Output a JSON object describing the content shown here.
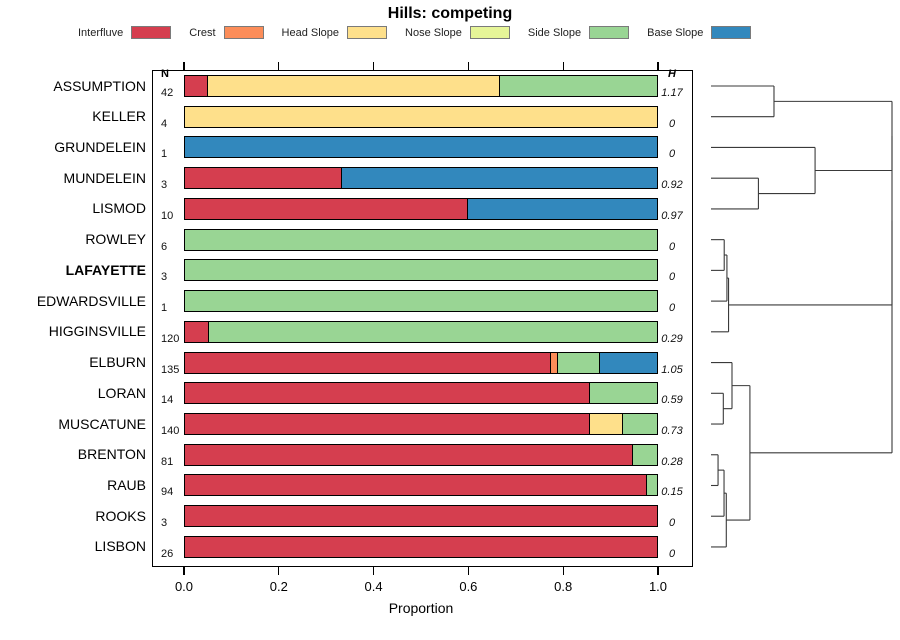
{
  "title": "Hills: competing",
  "columns": {
    "n_header": "N",
    "h_header": "H"
  },
  "axis": {
    "tick_labels": [
      "0.0",
      "0.2",
      "0.4",
      "0.6",
      "0.8",
      "1.0"
    ]
  },
  "chart_data": {
    "type": "bar",
    "orientation": "horizontal-stacked",
    "title": "Hills: competing",
    "xlabel": "Proportion",
    "xlim": [
      0,
      1
    ],
    "xticks": [
      0.0,
      0.2,
      0.4,
      0.6,
      0.8,
      1.0
    ],
    "grid": false,
    "legend_position": "top",
    "classes": [
      {
        "name": "Interfluve",
        "color": "#D53E4F"
      },
      {
        "name": "Crest",
        "color": "#FC8D59"
      },
      {
        "name": "Head Slope",
        "color": "#FEE08B"
      },
      {
        "name": "Nose Slope",
        "color": "#E6F598"
      },
      {
        "name": "Side Slope",
        "color": "#99D594"
      },
      {
        "name": "Base Slope",
        "color": "#3288BD"
      }
    ],
    "rows": [
      {
        "label": "ASSUMPTION",
        "n": "42",
        "h": "1.17",
        "bold": false,
        "segments": [
          [
            "Interfluve",
            0.048
          ],
          [
            "Head Slope",
            0.619
          ],
          [
            "Side Slope",
            0.333
          ]
        ]
      },
      {
        "label": "KELLER",
        "n": "4",
        "h": "0",
        "bold": false,
        "segments": [
          [
            "Head Slope",
            1.0
          ]
        ]
      },
      {
        "label": "GRUNDELEIN",
        "n": "1",
        "h": "0",
        "bold": false,
        "segments": [
          [
            "Base Slope",
            1.0
          ]
        ]
      },
      {
        "label": "MUNDELEIN",
        "n": "3",
        "h": "0.92",
        "bold": false,
        "segments": [
          [
            "Interfluve",
            0.333
          ],
          [
            "Base Slope",
            0.667
          ]
        ]
      },
      {
        "label": "LISMOD",
        "n": "10",
        "h": "0.97",
        "bold": false,
        "segments": [
          [
            "Interfluve",
            0.6
          ],
          [
            "Base Slope",
            0.4
          ]
        ]
      },
      {
        "label": "ROWLEY",
        "n": "6",
        "h": "0",
        "bold": false,
        "segments": [
          [
            "Side Slope",
            1.0
          ]
        ]
      },
      {
        "label": "LAFAYETTE",
        "n": "3",
        "h": "0",
        "bold": true,
        "segments": [
          [
            "Side Slope",
            1.0
          ]
        ]
      },
      {
        "label": "EDWARDSVILLE",
        "n": "1",
        "h": "0",
        "bold": false,
        "segments": [
          [
            "Side Slope",
            1.0
          ]
        ]
      },
      {
        "label": "HIGGINSVILLE",
        "n": "120",
        "h": "0.29",
        "bold": false,
        "segments": [
          [
            "Interfluve",
            0.05
          ],
          [
            "Side Slope",
            0.95
          ]
        ]
      },
      {
        "label": "ELBURN",
        "n": "135",
        "h": "1.05",
        "bold": false,
        "segments": [
          [
            "Interfluve",
            0.776
          ],
          [
            "Crest",
            0.015
          ],
          [
            "Side Slope",
            0.088
          ],
          [
            "Base Slope",
            0.121
          ]
        ]
      },
      {
        "label": "LORAN",
        "n": "14",
        "h": "0.59",
        "bold": false,
        "segments": [
          [
            "Interfluve",
            0.857
          ],
          [
            "Side Slope",
            0.143
          ]
        ]
      },
      {
        "label": "MUSCATUNE",
        "n": "140",
        "h": "0.73",
        "bold": false,
        "segments": [
          [
            "Interfluve",
            0.857
          ],
          [
            "Head Slope",
            0.072
          ],
          [
            "Side Slope",
            0.071
          ]
        ]
      },
      {
        "label": "BRENTON",
        "n": "81",
        "h": "0.28",
        "bold": false,
        "segments": [
          [
            "Interfluve",
            0.95
          ],
          [
            "Side Slope",
            0.05
          ]
        ]
      },
      {
        "label": "RAUB",
        "n": "94",
        "h": "0.15",
        "bold": false,
        "segments": [
          [
            "Interfluve",
            0.979
          ],
          [
            "Side Slope",
            0.021
          ]
        ]
      },
      {
        "label": "ROOKS",
        "n": "3",
        "h": "0",
        "bold": false,
        "segments": [
          [
            "Interfluve",
            1.0
          ]
        ]
      },
      {
        "label": "LISBON",
        "n": "26",
        "h": "0",
        "bold": false,
        "segments": [
          [
            "Interfluve",
            1.0
          ]
        ]
      }
    ],
    "dendrogram": {
      "note": "right-side cluster tree; leaves are row indices, h = merge height fraction 0..1",
      "tree": {
        "h": 1,
        "c": [
          {
            "h": 1,
            "c": [
              {
                "h": 1,
                "c": [
                  {
                    "h": 0.348,
                    "c": [
                      0,
                      1
                    ]
                  },
                  {
                    "h": 0.575,
                    "c": [
                      2,
                      {
                        "h": 0.262,
                        "c": [
                          3,
                          4
                        ]
                      }
                    ]
                  }
                ]
              },
              {
                "h": 0.097,
                "c": [
                  {
                    "h": 0.088,
                    "c": [
                      {
                        "h": 0.073,
                        "c": [
                          5,
                          6
                        ]
                      },
                      7
                    ]
                  },
                  8
                ]
              }
            ]
          },
          {
            "h": 0.215,
            "c": [
              {
                "h": 0.116,
                "c": [
                  9,
                  {
                    "h": 0.068,
                    "c": [
                      10,
                      11
                    ]
                  }
                ]
              },
              {
                "h": 0.0845,
                "c": [
                  {
                    "h": 0.072,
                    "c": [
                      {
                        "h": 0.039,
                        "c": [
                          12,
                          13
                        ]
                      },
                      14
                    ]
                  },
                  15
                ]
              }
            ]
          }
        ]
      }
    }
  }
}
